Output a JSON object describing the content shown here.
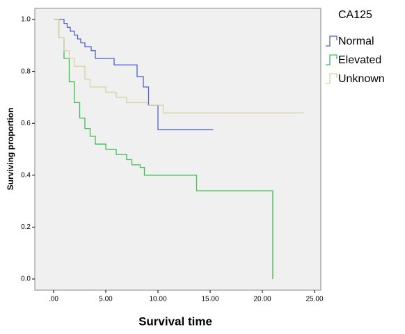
{
  "chart_data": {
    "type": "step",
    "xlabel": "Survival time",
    "ylabel": "Surviving proportion",
    "legend_title": "CA125",
    "legend": "right",
    "xlim": [
      -1.8,
      25.6
    ],
    "ylim": [
      -0.043,
      1.043
    ],
    "xticks": [
      {
        "value": 0,
        "label": ".00"
      },
      {
        "value": 5,
        "label": "5.00"
      },
      {
        "value": 10,
        "label": "10.00"
      },
      {
        "value": 15,
        "label": "15.00"
      },
      {
        "value": 20,
        "label": "20.00"
      },
      {
        "value": 25,
        "label": "25.00"
      }
    ],
    "yticks": [
      {
        "value": 0,
        "label": "0.0"
      },
      0.2,
      0.4,
      0.6,
      0.8,
      {
        "value": 1,
        "label": "1.0"
      }
    ],
    "series": [
      {
        "name": "Normal",
        "color": "#5060c8",
        "x": [
          0,
          1,
          1.3,
          1.6,
          2,
          2.3,
          2.6,
          3,
          3.6,
          4,
          5.8,
          8,
          8.6,
          9.1,
          10,
          15.3
        ],
        "values": [
          1.0,
          0.985,
          0.97,
          0.955,
          0.94,
          0.925,
          0.91,
          0.895,
          0.88,
          0.85,
          0.825,
          0.78,
          0.74,
          0.67,
          0.575,
          0.575
        ]
      },
      {
        "name": "Elevated",
        "color": "#3cc050",
        "x": [
          0,
          0.5,
          1,
          1.5,
          2,
          2.5,
          3,
          3.5,
          4,
          5,
          6,
          7,
          7.5,
          8.3,
          8.7,
          13.7,
          21,
          21
        ],
        "values": [
          1.0,
          0.93,
          0.85,
          0.76,
          0.68,
          0.62,
          0.58,
          0.55,
          0.52,
          0.5,
          0.48,
          0.46,
          0.44,
          0.43,
          0.4,
          0.34,
          0.34,
          0.0
        ]
      },
      {
        "name": "Unknown",
        "color": "#d8d2a4",
        "x": [
          0,
          0.5,
          1,
          1.5,
          2,
          3,
          3.5,
          5,
          6,
          7,
          9,
          10.5,
          24
        ],
        "values": [
          1.0,
          0.93,
          0.88,
          0.85,
          0.82,
          0.77,
          0.74,
          0.72,
          0.7,
          0.68,
          0.67,
          0.64,
          0.64
        ]
      }
    ]
  }
}
